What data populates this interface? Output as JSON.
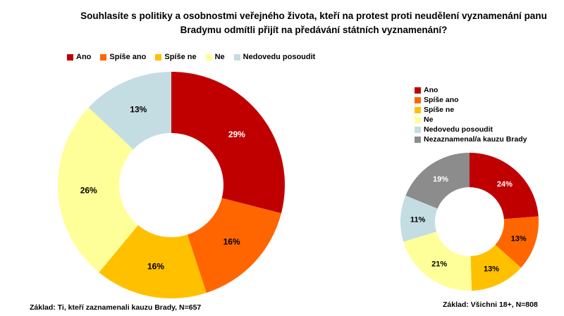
{
  "title": "Souhlasíte s politiky a osobnostmi veřejného života, kteří na protest proti neudělení vyznamenání panu Bradymu odmítli přijít na předávání státních vyznamenání?",
  "chart_data": [
    {
      "type": "pie",
      "subtype": "donut",
      "categories": [
        "Ano",
        "Spíše ano",
        "Spíše ne",
        "Ne",
        "Nedovedu posoudit"
      ],
      "values": [
        29,
        16,
        16,
        26,
        13
      ],
      "unit": "%",
      "colors": [
        "#C00000",
        "#FF6600",
        "#FFC000",
        "#FFFF99",
        "#C4DDE3"
      ],
      "label_colors": [
        "#FFFFFF",
        "#000000",
        "#000000",
        "#000000",
        "#000000"
      ],
      "legend_position": "top-left-horizontal",
      "start_angle_deg": 0,
      "direction": "clockwise",
      "base_note": "Základ: Ti, kteří zaznamenali kauzu Brady, N=657"
    },
    {
      "type": "pie",
      "subtype": "donut",
      "categories": [
        "Ano",
        "Spíše ano",
        "Spíše ne",
        "Ne",
        "Nedovedu posoudit",
        "Nezaznamenal/a kauzu Brady"
      ],
      "values": [
        24,
        13,
        13,
        21,
        11,
        19
      ],
      "unit": "%",
      "colors": [
        "#C00000",
        "#FF6600",
        "#FFC000",
        "#FFFF99",
        "#C4DDE3",
        "#8C8C8C"
      ],
      "label_colors": [
        "#FFFFFF",
        "#000000",
        "#000000",
        "#000000",
        "#000000",
        "#FFFFFF"
      ],
      "legend_position": "right-vertical",
      "start_angle_deg": 0,
      "direction": "clockwise",
      "base_note": "Základ: Všichni 18+, N=808"
    }
  ]
}
